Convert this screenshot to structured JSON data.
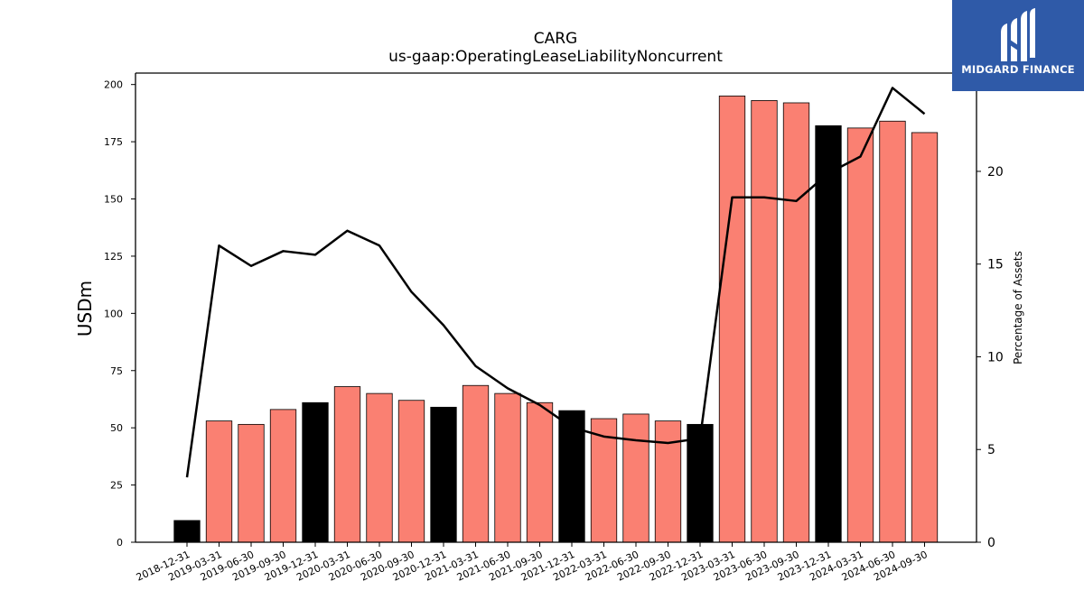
{
  "chart_data": {
    "type": "bar",
    "title": "CARG",
    "subtitle": "us-gaap:OperatingLeaseLiabilityNoncurrent",
    "ylabel": "USDm",
    "y2label": "Percentage of Assets",
    "ylim": [
      0,
      205
    ],
    "y2lim": [
      0,
      25.3
    ],
    "yticks": [
      0,
      25,
      50,
      75,
      100,
      125,
      150,
      175,
      200
    ],
    "y2ticks": [
      0,
      5,
      10,
      15,
      20
    ],
    "categories": [
      "2018-12-31",
      "2019-03-31",
      "2019-06-30",
      "2019-09-30",
      "2019-12-31",
      "2020-03-31",
      "2020-06-30",
      "2020-09-30",
      "2020-12-31",
      "2021-03-31",
      "2021-06-30",
      "2021-09-30",
      "2021-12-31",
      "2022-03-31",
      "2022-06-30",
      "2022-09-30",
      "2022-12-31",
      "2023-03-31",
      "2023-06-30",
      "2023-09-30",
      "2023-12-31",
      "2024-03-31",
      "2024-06-30",
      "2024-09-30"
    ],
    "series": [
      {
        "axis": "left",
        "kind": "bar",
        "values": [
          9.5,
          53,
          51.5,
          58,
          61,
          68,
          65,
          62,
          59,
          68.5,
          65,
          61,
          57.5,
          54,
          56,
          53,
          51.5,
          195,
          193,
          192,
          182,
          181,
          184,
          179
        ],
        "colors": [
          "#000000",
          "#fa8072",
          "#fa8072",
          "#fa8072",
          "#000000",
          "#fa8072",
          "#fa8072",
          "#fa8072",
          "#000000",
          "#fa8072",
          "#fa8072",
          "#fa8072",
          "#000000",
          "#fa8072",
          "#fa8072",
          "#fa8072",
          "#000000",
          "#fa8072",
          "#fa8072",
          "#fa8072",
          "#000000",
          "#fa8072",
          "#fa8072",
          "#fa8072"
        ]
      },
      {
        "axis": "right",
        "kind": "line",
        "color": "#000000",
        "values": [
          3.5,
          16,
          14.9,
          15.7,
          15.5,
          16.8,
          16,
          13.5,
          11.7,
          9.5,
          8.3,
          7.4,
          6.2,
          5.7,
          5.5,
          5.35,
          5.6,
          18.6,
          18.6,
          18.4,
          19.9,
          20.8,
          24.5,
          23.1
        ]
      }
    ]
  },
  "logo": {
    "text": "MIDGARD FINANCE",
    "background": "#2f5aa8",
    "icon": "midgard-logo-icon"
  }
}
